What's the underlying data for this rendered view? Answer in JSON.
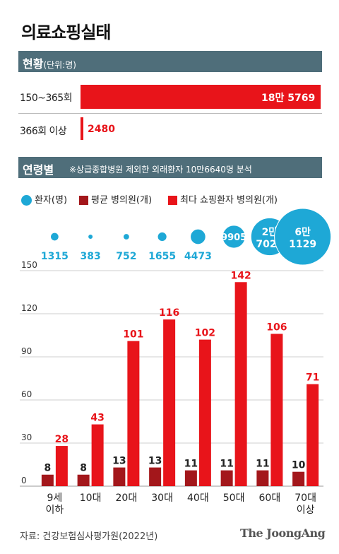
{
  "title": "의료쇼핑실태",
  "section1": {
    "label": "현황",
    "unit": "(단위:명)"
  },
  "status_rows": [
    {
      "label": "150~365회",
      "value": 185769,
      "value_label": "18만 5769"
    },
    {
      "label": "366회 이상",
      "value": 2480,
      "value_label": "2480"
    }
  ],
  "section2": {
    "label": "연령별",
    "note": "※상급종합병원 제외한 외래환자 10만6640명 분석"
  },
  "legend": [
    {
      "label": "환자(명)",
      "color": "#1ea8d6",
      "shape": "circle"
    },
    {
      "label": "평균 병의원(개)",
      "color": "#a3171b",
      "shape": "square"
    },
    {
      "label": "최다 쇼핑환자 병의원(개)",
      "color": "#e8141a",
      "shape": "square"
    }
  ],
  "colors": {
    "accent_red": "#e8141a",
    "dark_red": "#a3171b",
    "blue": "#1ea8d6",
    "section_bar": "#4f6e7a"
  },
  "chart_data": {
    "type": "bar",
    "categories": [
      "9세\n이하",
      "10대",
      "20대",
      "30대",
      "40대",
      "50대",
      "60대",
      "70대\n이상"
    ],
    "patients": [
      1315,
      383,
      752,
      1655,
      4473,
      9905,
      27028,
      61129
    ],
    "patient_labels": [
      "1315",
      "383",
      "752",
      "1655",
      "4473",
      "9905",
      "2만\n7028",
      "6만\n1129"
    ],
    "series": [
      {
        "name": "평균 병의원(개)",
        "values": [
          8,
          8,
          13,
          13,
          11,
          11,
          11,
          10
        ]
      },
      {
        "name": "최다 쇼핑환자 병의원(개)",
        "values": [
          28,
          43,
          101,
          116,
          102,
          142,
          106,
          71
        ]
      }
    ],
    "ylim": [
      0,
      150
    ],
    "yticks": [
      0,
      30,
      60,
      90,
      120,
      150
    ],
    "grid": true
  },
  "source": "자료: 건강보험심사평가원(2022년)",
  "brand": "The JoongAng"
}
